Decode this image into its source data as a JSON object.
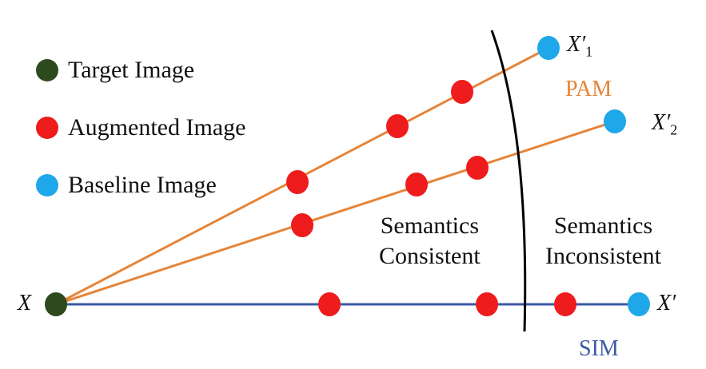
{
  "legend": [
    {
      "label": "Target Image",
      "color": "#2d4a1e"
    },
    {
      "label": "Augmented Image",
      "color": "#ee1c1c"
    },
    {
      "label": "Baseline Image",
      "color": "#1ea7e9"
    }
  ],
  "colors": {
    "pam": "#e58539",
    "sim": "#3b5aa5",
    "boundary": "#000000"
  },
  "methods": {
    "pam": "PAM",
    "sim": "SIM"
  },
  "regions": {
    "consistent": {
      "line1": "Semantics",
      "line2": "Consistent"
    },
    "inconsistent": {
      "line1": "Semantics",
      "line2": "Inconsistent"
    }
  },
  "points": {
    "x": "X",
    "x_prime": "X′",
    "x1_prime": {
      "base": "X′",
      "sub": "1"
    },
    "x2_prime": {
      "base": "X′",
      "sub": "2"
    }
  }
}
